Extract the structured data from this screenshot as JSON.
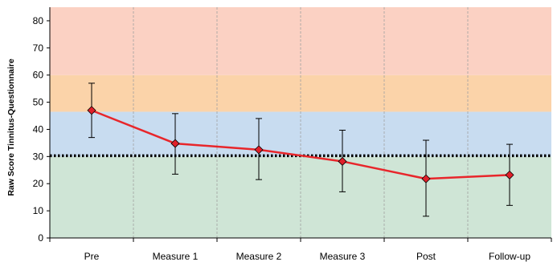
{
  "chart_data": {
    "type": "line",
    "title": "",
    "xlabel": "",
    "ylabel": "Raw Score Tinnitus-Questionnaire",
    "ylim": [
      0,
      85
    ],
    "yticks": [
      0,
      10,
      20,
      30,
      40,
      50,
      60,
      70,
      80
    ],
    "categories": [
      "Pre",
      "Measure 1",
      "Measure 2",
      "Measure 3",
      "Post",
      "Follow-up"
    ],
    "series": [
      {
        "values": [
          47,
          34.8,
          32.5,
          28.2,
          21.8,
          23.2
        ],
        "error_low": [
          37,
          23.5,
          21.5,
          17,
          8,
          12
        ],
        "error_high": [
          57,
          45.8,
          44,
          39.7,
          36,
          34.5
        ],
        "color": "#e8262b",
        "marker_color": "#e0202a"
      }
    ],
    "bands": [
      {
        "from": 0,
        "to": 30,
        "color": "#cfe5d6"
      },
      {
        "from": 30,
        "to": 46.5,
        "color": "#c8dcf0"
      },
      {
        "from": 46.5,
        "to": 60,
        "color": "#fbd3a9"
      },
      {
        "from": 60,
        "to": 85,
        "color": "#fbd1c3"
      }
    ],
    "reference_line": {
      "value": 30.3,
      "style": "dotted",
      "color": "#000000"
    },
    "grid": {
      "vertical": true,
      "horizontal": false,
      "color": "#a0a0a0"
    },
    "legend": "none"
  }
}
